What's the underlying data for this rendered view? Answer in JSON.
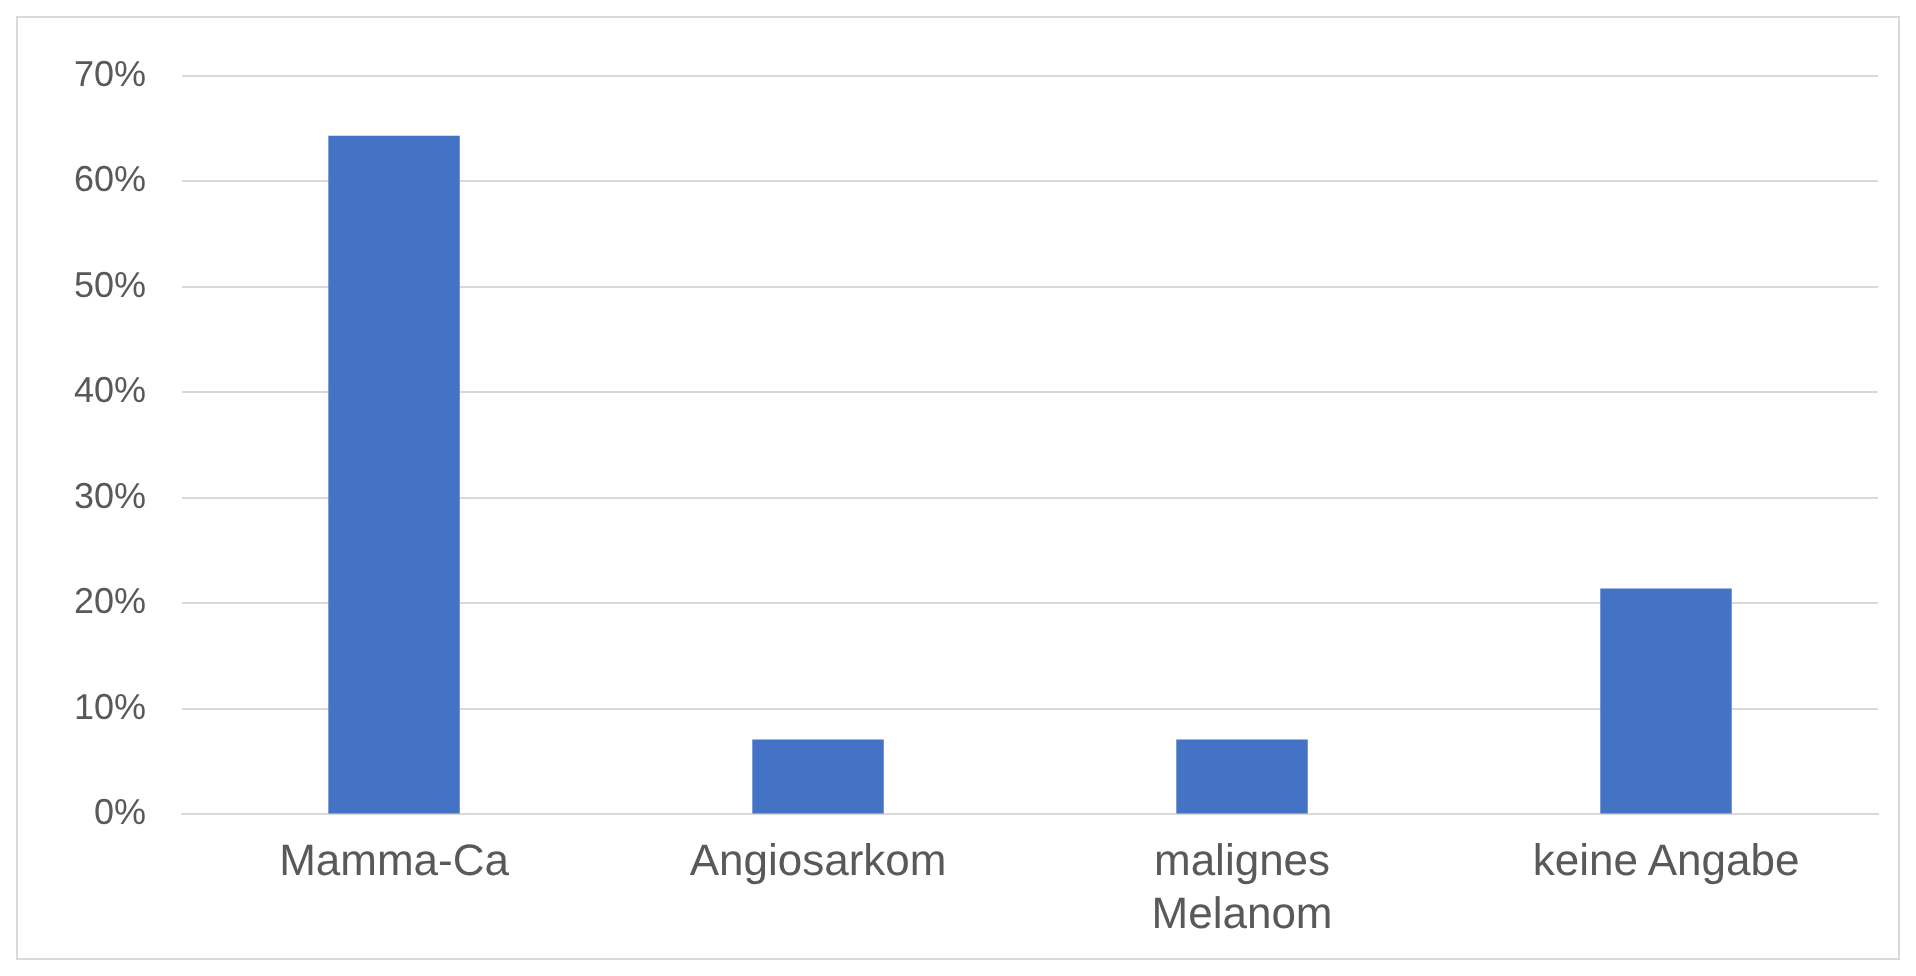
{
  "chart_data": {
    "type": "bar",
    "categories": [
      "Mamma-Ca",
      "Angiosarkom",
      "malignes Melanom",
      "keine Angabe"
    ],
    "values": [
      64.3,
      7.1,
      7.1,
      21.4
    ],
    "color": "#4472c4",
    "ylim": [
      0,
      70
    ],
    "yticks": [
      {
        "value": 0,
        "label": "0%"
      },
      {
        "value": 10,
        "label": "10%"
      },
      {
        "value": 20,
        "label": "20%"
      },
      {
        "value": 30,
        "label": "30%"
      },
      {
        "value": 40,
        "label": "40%"
      },
      {
        "value": 50,
        "label": "50%"
      },
      {
        "value": 60,
        "label": "60%"
      },
      {
        "value": 70,
        "label": "70%"
      }
    ],
    "grid": "y"
  }
}
